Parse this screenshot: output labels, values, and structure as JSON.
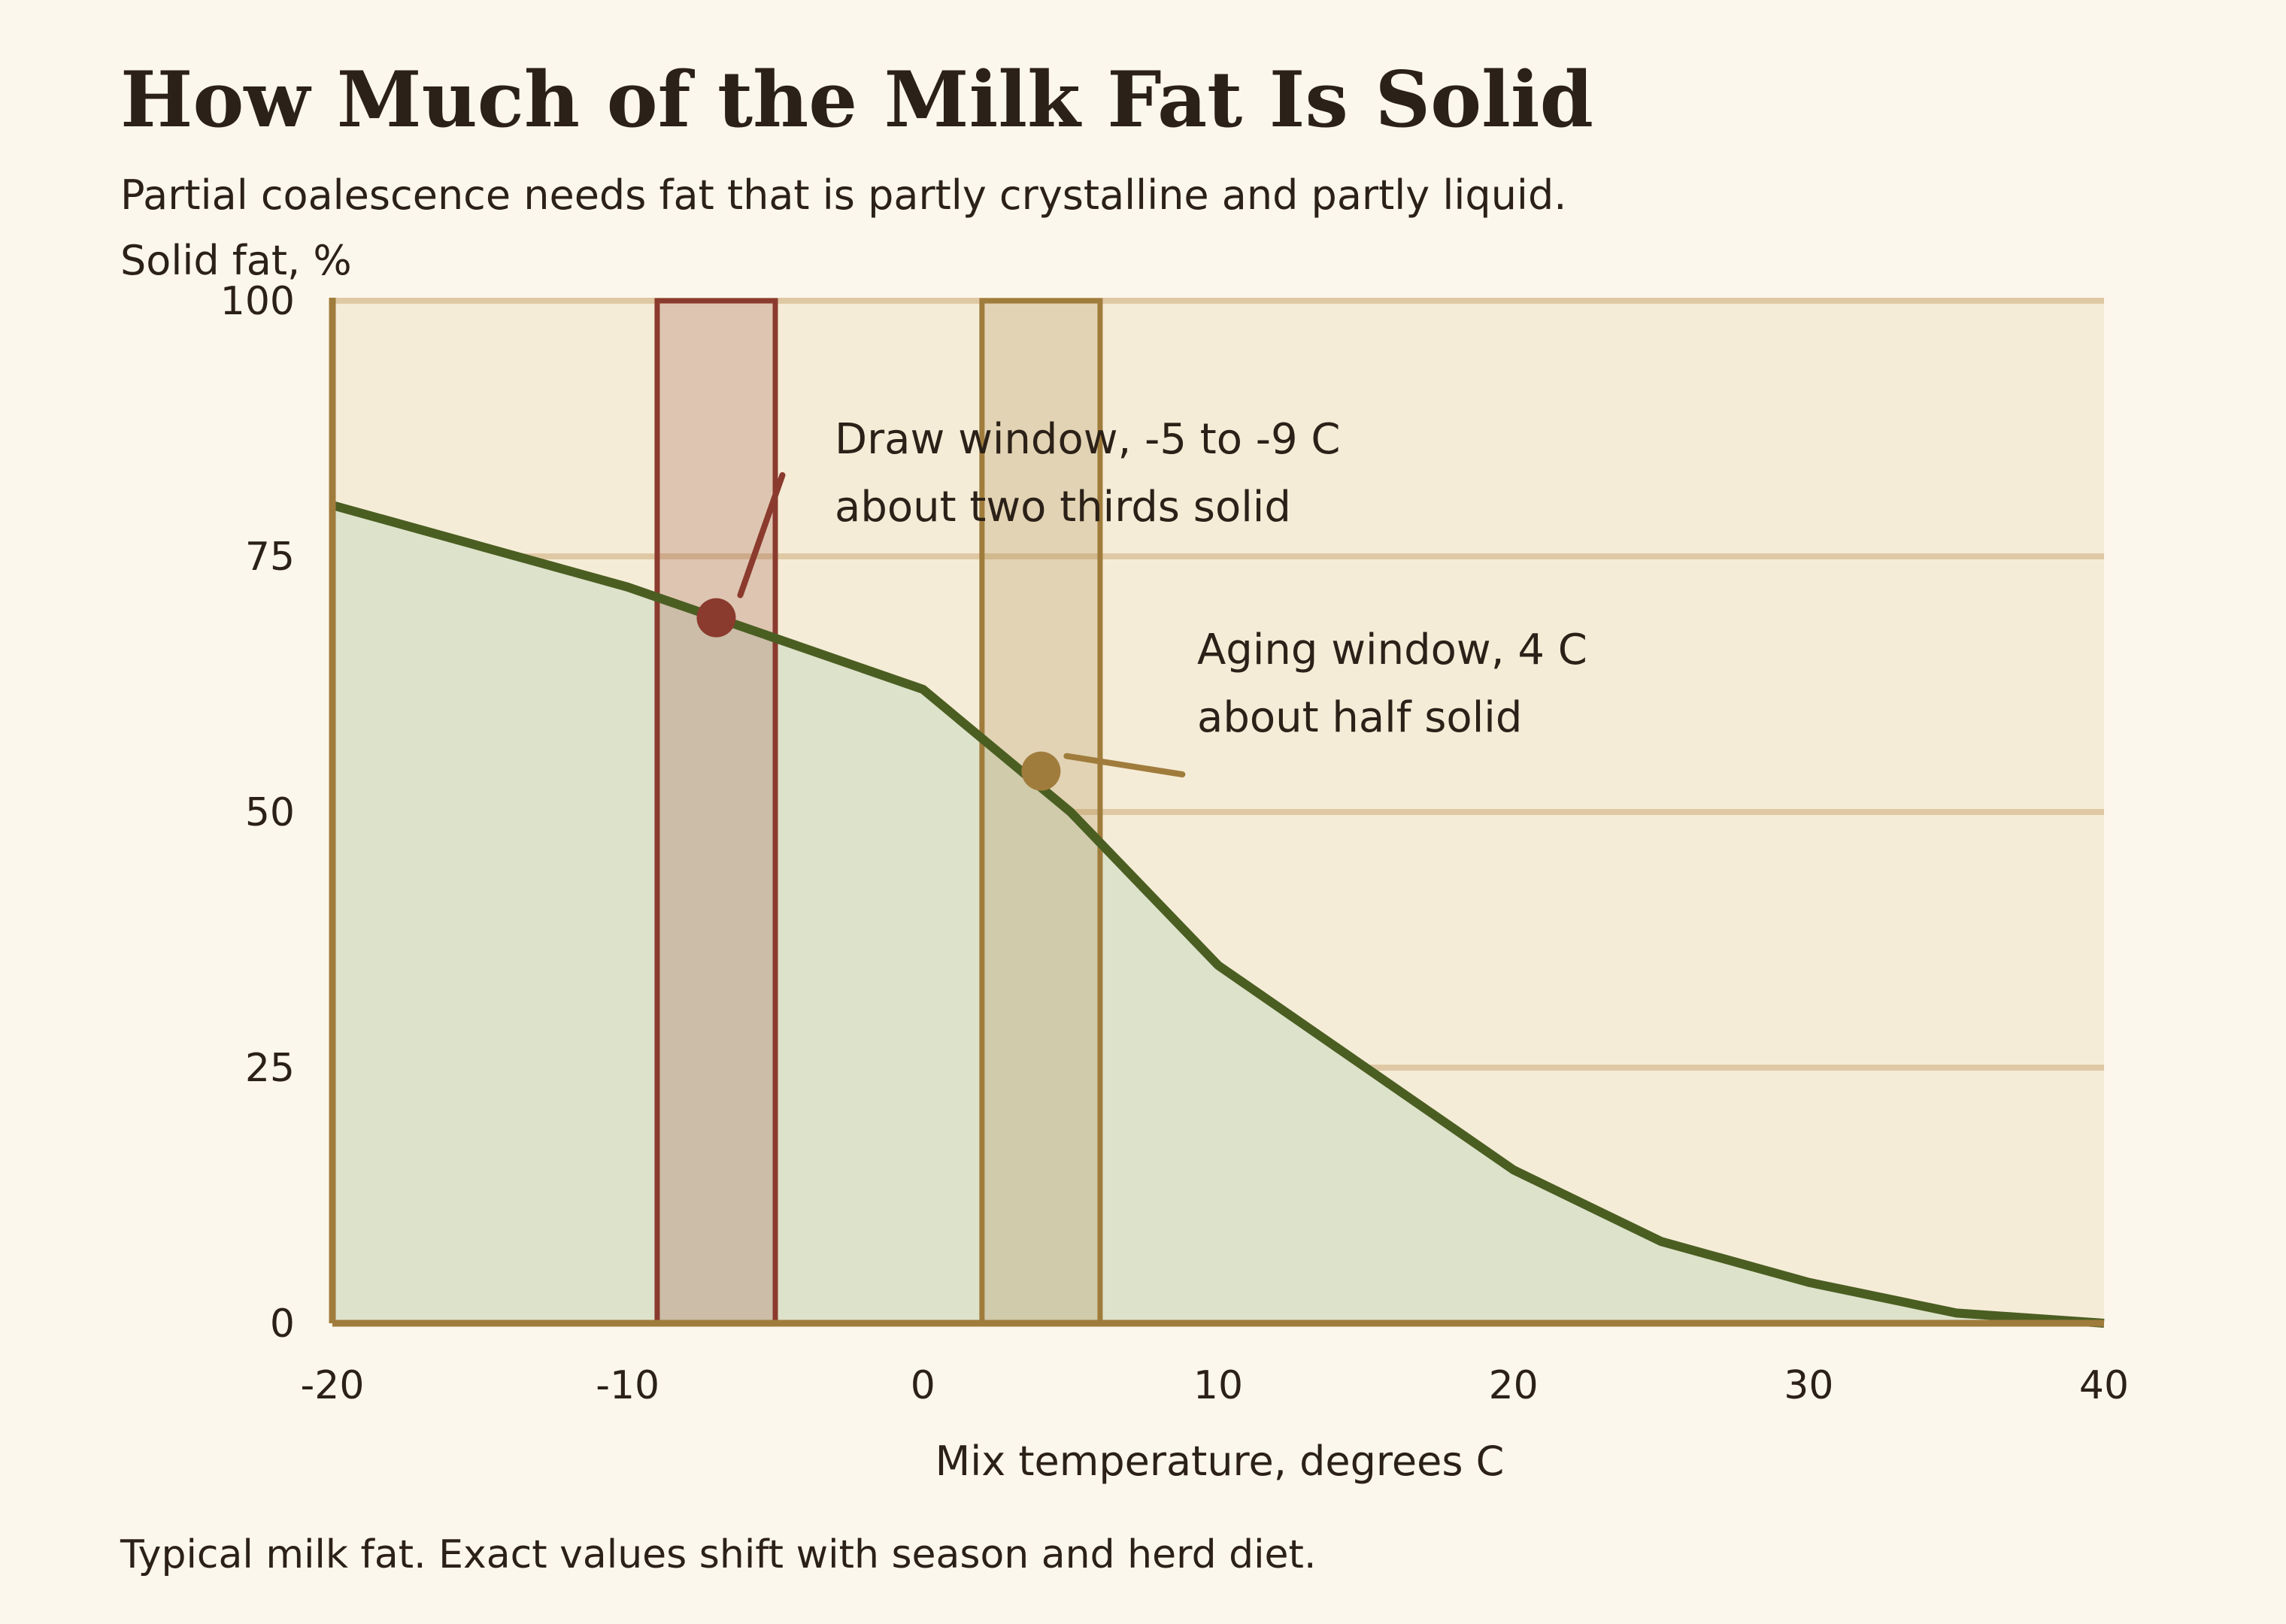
{
  "chart_data": {
    "type": "area",
    "title": "How Much of the Milk Fat Is Solid",
    "subtitle": "Partial coalescence needs fat that is partly crystalline and partly liquid.",
    "xlabel": "Mix temperature, degrees C",
    "ylabel": "Solid fat, %",
    "footnote": "Typical milk fat. Exact values shift with season and herd diet.",
    "xlim": [
      -20,
      40
    ],
    "ylim": [
      0,
      100
    ],
    "x_ticks": [
      "-20",
      "-10",
      "0",
      "10",
      "20",
      "30",
      "40"
    ],
    "x_tick_values": [
      -20,
      -10,
      0,
      10,
      20,
      30,
      40
    ],
    "y_ticks": [
      "0",
      "25",
      "50",
      "75",
      "100"
    ],
    "y_tick_values": [
      0,
      25,
      50,
      75,
      100
    ],
    "grid": "horizontal",
    "series": [
      {
        "x": [
          -20,
          -10,
          0,
          5,
          10,
          20,
          25,
          30,
          35,
          40
        ],
        "y": [
          80,
          72,
          62,
          50,
          35,
          15,
          8,
          4,
          1,
          0
        ],
        "color": "#4b5e22"
      }
    ],
    "bands": [
      {
        "x0": -9,
        "x1": -5,
        "color": "#8b3a2e"
      },
      {
        "x0": 2,
        "x1": 6,
        "color": "#a07c3c"
      }
    ],
    "annotations": [
      {
        "x": -7,
        "y": 69,
        "lines": [
          "Draw window, -5 to -9 C",
          "about two thirds solid"
        ],
        "color": "#8b3a2e"
      },
      {
        "x": 4,
        "y": 54,
        "lines": [
          "Aging window, 4 C",
          "about half solid"
        ],
        "color": "#a07c3c"
      }
    ],
    "colors": {
      "plot_bg": "#f5ecd7",
      "grid": "#dfc9a4",
      "axis": "#a07c3c",
      "area_fill": "#dde2cb"
    }
  }
}
